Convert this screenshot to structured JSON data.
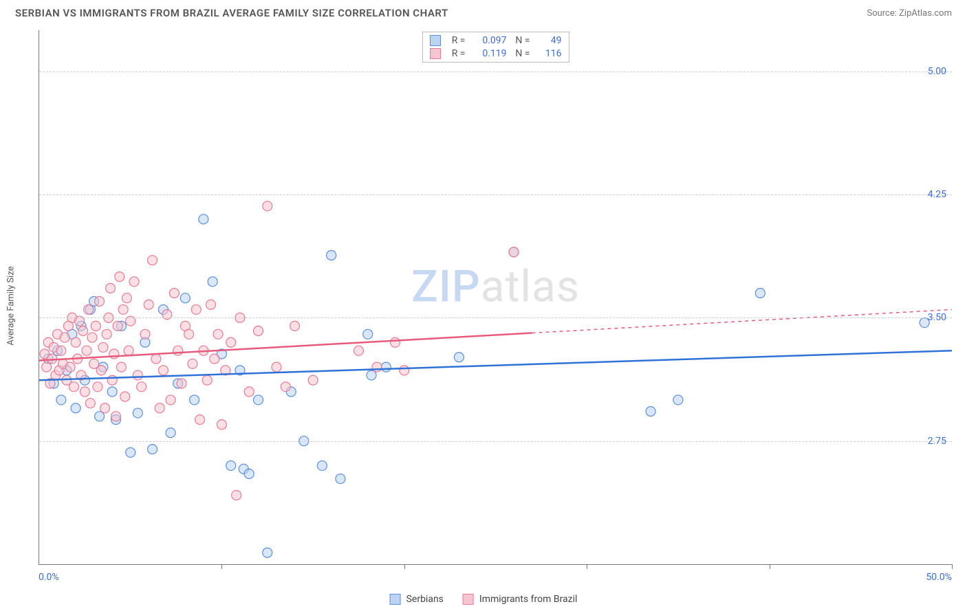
{
  "title": "SERBIAN VS IMMIGRANTS FROM BRAZIL AVERAGE FAMILY SIZE CORRELATION CHART",
  "source_prefix": "Source: ",
  "source_name": "ZipAtlas.com",
  "ylabel": "Average Family Size",
  "watermark": {
    "part1": "ZIP",
    "part2": "atlas"
  },
  "chart": {
    "type": "scatter",
    "xlim": [
      0,
      50
    ],
    "ylim": [
      2.0,
      5.25
    ],
    "x_tick_positions_pct": [
      0,
      10,
      20,
      30,
      40,
      50
    ],
    "x_min_label": "0.0%",
    "x_max_label": "50.0%",
    "y_ticks": [
      2.75,
      3.5,
      4.25,
      5.0
    ],
    "y_tick_labels": [
      "2.75",
      "3.50",
      "4.25",
      "5.00"
    ],
    "grid_color": "#cccccc",
    "axis_color": "#777777",
    "background_color": "#ffffff",
    "tick_label_color": "#3b6fd6",
    "point_radius": 7,
    "point_opacity": 0.55,
    "series": [
      {
        "name": "Serbians",
        "fill": "#bcd3f2",
        "stroke": "#5a8fe0",
        "line_color": "#2f73d6",
        "R": "0.097",
        "N": "49",
        "trend": {
          "y_at_xmin": 3.12,
          "y_at_xmax": 3.3,
          "solid_until_x": 50
        },
        "points": [
          [
            0.5,
            3.25
          ],
          [
            0.8,
            3.1
          ],
          [
            1.0,
            3.3
          ],
          [
            1.2,
            3.0
          ],
          [
            1.5,
            3.18
          ],
          [
            1.8,
            3.4
          ],
          [
            2.0,
            2.95
          ],
          [
            2.3,
            3.45
          ],
          [
            2.5,
            3.12
          ],
          [
            2.8,
            3.55
          ],
          [
            3.0,
            3.6
          ],
          [
            3.3,
            2.9
          ],
          [
            3.5,
            3.2
          ],
          [
            4.0,
            3.05
          ],
          [
            4.2,
            2.88
          ],
          [
            4.5,
            3.45
          ],
          [
            5.0,
            2.68
          ],
          [
            5.4,
            2.92
          ],
          [
            5.8,
            3.35
          ],
          [
            6.2,
            2.7
          ],
          [
            6.8,
            3.55
          ],
          [
            7.2,
            2.8
          ],
          [
            7.6,
            3.1
          ],
          [
            8.0,
            3.62
          ],
          [
            8.5,
            3.0
          ],
          [
            9.0,
            4.1
          ],
          [
            9.5,
            3.72
          ],
          [
            10.0,
            3.28
          ],
          [
            10.5,
            2.6
          ],
          [
            11.0,
            3.18
          ],
          [
            11.2,
            2.58
          ],
          [
            11.5,
            2.55
          ],
          [
            12.0,
            3.0
          ],
          [
            12.5,
            2.07
          ],
          [
            13.8,
            3.05
          ],
          [
            14.5,
            2.75
          ],
          [
            15.5,
            2.6
          ],
          [
            16.0,
            3.88
          ],
          [
            16.5,
            2.52
          ],
          [
            18.0,
            3.4
          ],
          [
            18.2,
            3.15
          ],
          [
            19.0,
            3.2
          ],
          [
            23.0,
            3.26
          ],
          [
            26.0,
            3.9
          ],
          [
            33.5,
            2.93
          ],
          [
            35.0,
            3.0
          ],
          [
            39.5,
            3.65
          ],
          [
            48.5,
            3.47
          ]
        ]
      },
      {
        "name": "Immigants from Brazil",
        "name_bottom": "Immigrants from Brazil",
        "fill": "#f6c6d0",
        "stroke": "#e87b94",
        "line_color": "#e85a7c",
        "R": "0.119",
        "N": "116",
        "trend": {
          "y_at_xmin": 3.24,
          "y_at_xmax": 3.55,
          "solid_until_x": 27
        },
        "points": [
          [
            0.3,
            3.28
          ],
          [
            0.4,
            3.2
          ],
          [
            0.5,
            3.35
          ],
          [
            0.6,
            3.1
          ],
          [
            0.7,
            3.25
          ],
          [
            0.8,
            3.32
          ],
          [
            0.9,
            3.15
          ],
          [
            1.0,
            3.4
          ],
          [
            1.1,
            3.18
          ],
          [
            1.2,
            3.3
          ],
          [
            1.3,
            3.22
          ],
          [
            1.4,
            3.38
          ],
          [
            1.5,
            3.12
          ],
          [
            1.6,
            3.45
          ],
          [
            1.7,
            3.2
          ],
          [
            1.8,
            3.5
          ],
          [
            1.9,
            3.08
          ],
          [
            2.0,
            3.35
          ],
          [
            2.1,
            3.25
          ],
          [
            2.2,
            3.48
          ],
          [
            2.3,
            3.15
          ],
          [
            2.4,
            3.42
          ],
          [
            2.5,
            3.05
          ],
          [
            2.6,
            3.3
          ],
          [
            2.7,
            3.55
          ],
          [
            2.8,
            2.98
          ],
          [
            2.9,
            3.38
          ],
          [
            3.0,
            3.22
          ],
          [
            3.1,
            3.45
          ],
          [
            3.2,
            3.08
          ],
          [
            3.3,
            3.6
          ],
          [
            3.4,
            3.18
          ],
          [
            3.5,
            3.32
          ],
          [
            3.6,
            2.95
          ],
          [
            3.7,
            3.4
          ],
          [
            3.8,
            3.5
          ],
          [
            3.9,
            3.68
          ],
          [
            4.0,
            3.12
          ],
          [
            4.1,
            3.28
          ],
          [
            4.2,
            2.9
          ],
          [
            4.3,
            3.45
          ],
          [
            4.4,
            3.75
          ],
          [
            4.5,
            3.2
          ],
          [
            4.6,
            3.55
          ],
          [
            4.7,
            3.02
          ],
          [
            4.8,
            3.62
          ],
          [
            4.9,
            3.3
          ],
          [
            5.0,
            3.48
          ],
          [
            5.2,
            3.72
          ],
          [
            5.4,
            3.15
          ],
          [
            5.6,
            3.08
          ],
          [
            5.8,
            3.4
          ],
          [
            6.0,
            3.58
          ],
          [
            6.2,
            3.85
          ],
          [
            6.4,
            3.25
          ],
          [
            6.6,
            2.95
          ],
          [
            6.8,
            3.18
          ],
          [
            7.0,
            3.52
          ],
          [
            7.2,
            3.0
          ],
          [
            7.4,
            3.65
          ],
          [
            7.6,
            3.3
          ],
          [
            7.8,
            3.1
          ],
          [
            8.0,
            3.45
          ],
          [
            8.2,
            3.4
          ],
          [
            8.4,
            3.22
          ],
          [
            8.6,
            3.55
          ],
          [
            8.8,
            2.88
          ],
          [
            9.0,
            3.3
          ],
          [
            9.2,
            3.12
          ],
          [
            9.4,
            3.58
          ],
          [
            9.6,
            3.25
          ],
          [
            9.8,
            3.4
          ],
          [
            10.0,
            2.85
          ],
          [
            10.2,
            3.18
          ],
          [
            10.5,
            3.35
          ],
          [
            10.8,
            2.42
          ],
          [
            11.0,
            3.5
          ],
          [
            11.5,
            3.05
          ],
          [
            12.0,
            3.42
          ],
          [
            12.5,
            4.18
          ],
          [
            13.0,
            3.2
          ],
          [
            13.5,
            3.08
          ],
          [
            14.0,
            3.45
          ],
          [
            15.0,
            3.12
          ],
          [
            17.5,
            3.3
          ],
          [
            18.5,
            3.2
          ],
          [
            19.5,
            3.35
          ],
          [
            20.0,
            3.18
          ],
          [
            26.0,
            3.9
          ]
        ]
      }
    ]
  },
  "legend_top": {
    "R_label": "R =",
    "N_label": "N ="
  },
  "legend_bottom_label_0": "Serbians",
  "legend_bottom_label_1": "Immigrants from Brazil"
}
